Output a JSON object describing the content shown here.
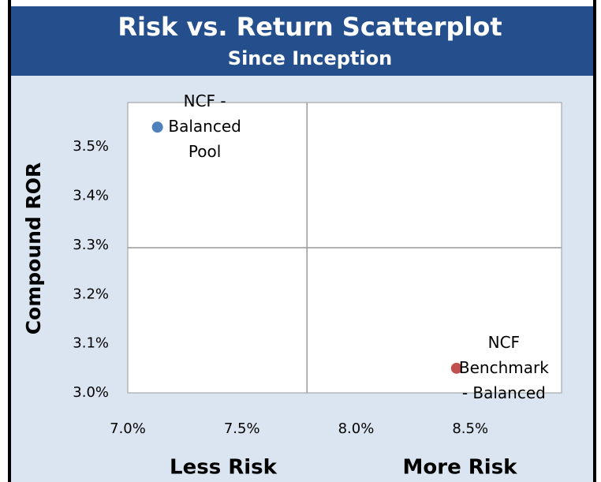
{
  "chart_data": {
    "type": "scatter",
    "title": "Risk vs. Return Scatterplot",
    "subtitle": "Since Inception",
    "y_label": "Compound ROR",
    "x_labels": [
      "Less Risk",
      "More Risk"
    ],
    "series": [
      {
        "name": "NCF - Balanced Pool",
        "color": "#4f81bd",
        "x": [
          7.13
        ],
        "values": [
          3.54
        ]
      },
      {
        "name": "NCF Benchmark - Balanced",
        "color": "#c0504d",
        "x": [
          8.44
        ],
        "values": [
          3.05
        ]
      }
    ],
    "crosshair": {
      "x": 7.785,
      "y": 3.295
    },
    "xlim": [
      7.0,
      8.9
    ],
    "ylim": [
      3.0,
      3.59
    ],
    "xticks": [
      {
        "value": 7.0,
        "label": "7.0%"
      },
      {
        "value": 7.5,
        "label": "7.5%"
      },
      {
        "value": 8.0,
        "label": "8.0%"
      },
      {
        "value": 8.5,
        "label": "8.5%"
      }
    ],
    "yticks": [
      {
        "value": 3.0,
        "label": "3.0%"
      },
      {
        "value": 3.1,
        "label": "3.1%"
      },
      {
        "value": 3.2,
        "label": "3.2%"
      },
      {
        "value": 3.3,
        "label": "3.3%"
      },
      {
        "value": 3.4,
        "label": "3.4%"
      },
      {
        "value": 3.5,
        "label": "3.5%"
      }
    ]
  }
}
